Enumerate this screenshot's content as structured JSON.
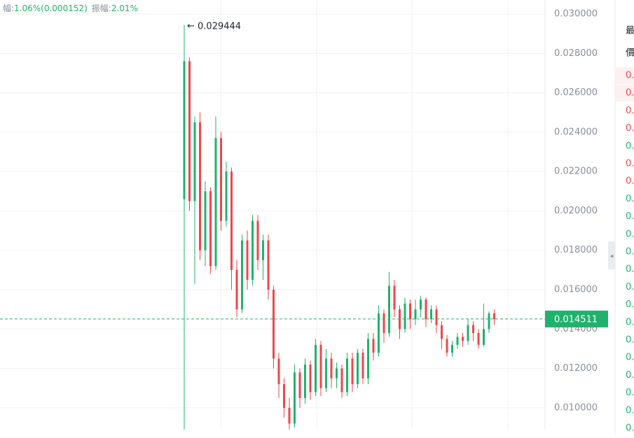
{
  "header": {
    "change_label": "幅:",
    "change": "1.06%(0.000152)",
    "amplitude_label": "振幅:",
    "amplitude": "2.01%"
  },
  "chart_data": {
    "type": "candlestick",
    "open": [
      0.0206,
      0.0276,
      0.0205,
      0.0245,
      0.018,
      0.021,
      0.0172,
      0.0237,
      0.0195,
      0.022,
      0.017,
      0.015,
      0.0185,
      0.0165,
      0.0195,
      0.0175,
      0.0185,
      0.016,
      0.0125,
      0.0112,
      0.01,
      0.0092,
      0.0118,
      0.0105,
      0.0122,
      0.0108,
      0.0132,
      0.011,
      0.0125,
      0.0115,
      0.012,
      0.0108,
      0.0125,
      0.0112,
      0.0128,
      0.0115,
      0.0135,
      0.0128,
      0.0148,
      0.0138,
      0.0162,
      0.015,
      0.014,
      0.0153,
      0.0145,
      0.015,
      0.0155,
      0.0145,
      0.015,
      0.0142,
      0.0135,
      0.0128,
      0.0132,
      0.0136,
      0.0134,
      0.0142,
      0.0138,
      0.0132,
      0.014,
      0.0148
    ],
    "high": [
      0.029444,
      0.0278,
      0.0248,
      0.025,
      0.0215,
      0.0212,
      0.0248,
      0.024,
      0.0225,
      0.0222,
      0.0175,
      0.0188,
      0.019,
      0.0198,
      0.0198,
      0.0188,
      0.0188,
      0.0162,
      0.0128,
      0.0115,
      0.0105,
      0.0122,
      0.012,
      0.0125,
      0.0124,
      0.0135,
      0.0134,
      0.013,
      0.0128,
      0.0123,
      0.0122,
      0.0128,
      0.0128,
      0.013,
      0.013,
      0.0138,
      0.0138,
      0.0152,
      0.015,
      0.0169,
      0.0165,
      0.0152,
      0.0156,
      0.0155,
      0.0155,
      0.0157,
      0.0156,
      0.0152,
      0.0152,
      0.0144,
      0.0137,
      0.0134,
      0.0138,
      0.0138,
      0.0145,
      0.0144,
      0.014,
      0.0153,
      0.0149,
      0.015
    ],
    "low": [
      0.0089,
      0.02,
      0.0163,
      0.0175,
      0.0172,
      0.0168,
      0.017,
      0.019,
      0.0192,
      0.016,
      0.0146,
      0.0148,
      0.016,
      0.0162,
      0.017,
      0.0165,
      0.0155,
      0.012,
      0.0105,
      0.0095,
      0.0089,
      0.009,
      0.01,
      0.0102,
      0.0104,
      0.0106,
      0.0106,
      0.0108,
      0.011,
      0.011,
      0.0105,
      0.0106,
      0.0108,
      0.011,
      0.0112,
      0.0112,
      0.0124,
      0.0126,
      0.0133,
      0.0136,
      0.0146,
      0.0135,
      0.0138,
      0.014,
      0.0142,
      0.0146,
      0.0141,
      0.0143,
      0.0138,
      0.013,
      0.0126,
      0.0126,
      0.013,
      0.0131,
      0.0132,
      0.0134,
      0.013,
      0.0131,
      0.0138,
      0.0142
    ],
    "close": [
      0.0276,
      0.0205,
      0.0245,
      0.018,
      0.021,
      0.0172,
      0.0237,
      0.0195,
      0.022,
      0.017,
      0.015,
      0.0185,
      0.0165,
      0.0195,
      0.0175,
      0.0185,
      0.016,
      0.0125,
      0.0112,
      0.01,
      0.0092,
      0.0118,
      0.0105,
      0.0122,
      0.0108,
      0.0132,
      0.011,
      0.0125,
      0.0115,
      0.012,
      0.0108,
      0.0125,
      0.0112,
      0.0128,
      0.0115,
      0.0135,
      0.0128,
      0.0148,
      0.0138,
      0.0162,
      0.015,
      0.014,
      0.0153,
      0.0145,
      0.015,
      0.0155,
      0.0145,
      0.015,
      0.0142,
      0.0135,
      0.0128,
      0.0132,
      0.0136,
      0.0134,
      0.0142,
      0.0138,
      0.0132,
      0.014,
      0.0148,
      0.0145
    ],
    "up_color": "#20b26c",
    "down_color": "#ef454a",
    "ylim": [
      0.00893,
      0.03071
    ],
    "yticks": [
      {
        "value": 0.01,
        "label": "0.010000"
      },
      {
        "value": 0.012,
        "label": "0.012000"
      },
      {
        "value": 0.014,
        "label": "0.014000"
      },
      {
        "value": 0.016,
        "label": "0.016000"
      },
      {
        "value": 0.018,
        "label": "0.018000"
      },
      {
        "value": 0.02,
        "label": "0.020000"
      },
      {
        "value": 0.022,
        "label": "0.022000"
      },
      {
        "value": 0.024,
        "label": "0.024000"
      },
      {
        "value": 0.026,
        "label": "0.026000"
      },
      {
        "value": 0.028,
        "label": "0.028000"
      },
      {
        "value": 0.03,
        "label": "0.030000"
      }
    ],
    "grid": true,
    "last_price": 0.014511
  },
  "order_book": {
    "headers": [
      "最",
      "價"
    ],
    "rows": [
      {
        "text": "0.",
        "color": "#ef454a"
      },
      {
        "text": "0.",
        "color": "#ef454a"
      },
      {
        "text": "0.",
        "color": "#ef454a"
      },
      {
        "text": "0.",
        "color": "#ef454a"
      },
      {
        "text": "0.",
        "color": "#20b26c"
      },
      {
        "text": "0.",
        "color": "#ef454a"
      },
      {
        "text": "0.",
        "color": "#ef454a"
      },
      {
        "text": "0.",
        "color": "#20b26c"
      },
      {
        "text": "0.",
        "color": "#20b26c"
      },
      {
        "text": "0.",
        "color": "#20b26c"
      },
      {
        "text": "0.",
        "color": "#20b26c"
      },
      {
        "text": "0.",
        "color": "#20b26c"
      },
      {
        "text": "0.",
        "color": "#20b26c"
      },
      {
        "text": "0.",
        "color": "#20b26c"
      },
      {
        "text": "0.",
        "color": "#20b26c"
      },
      {
        "text": "0.",
        "color": "#20b26c"
      },
      {
        "text": "0.",
        "color": "#20b26c"
      },
      {
        "text": "0.",
        "color": "#20b26c"
      },
      {
        "text": "0.",
        "color": "#20b26c"
      },
      {
        "text": "0.",
        "color": "#20b26c"
      },
      {
        "text": "0.",
        "color": "#20b26c"
      }
    ]
  }
}
